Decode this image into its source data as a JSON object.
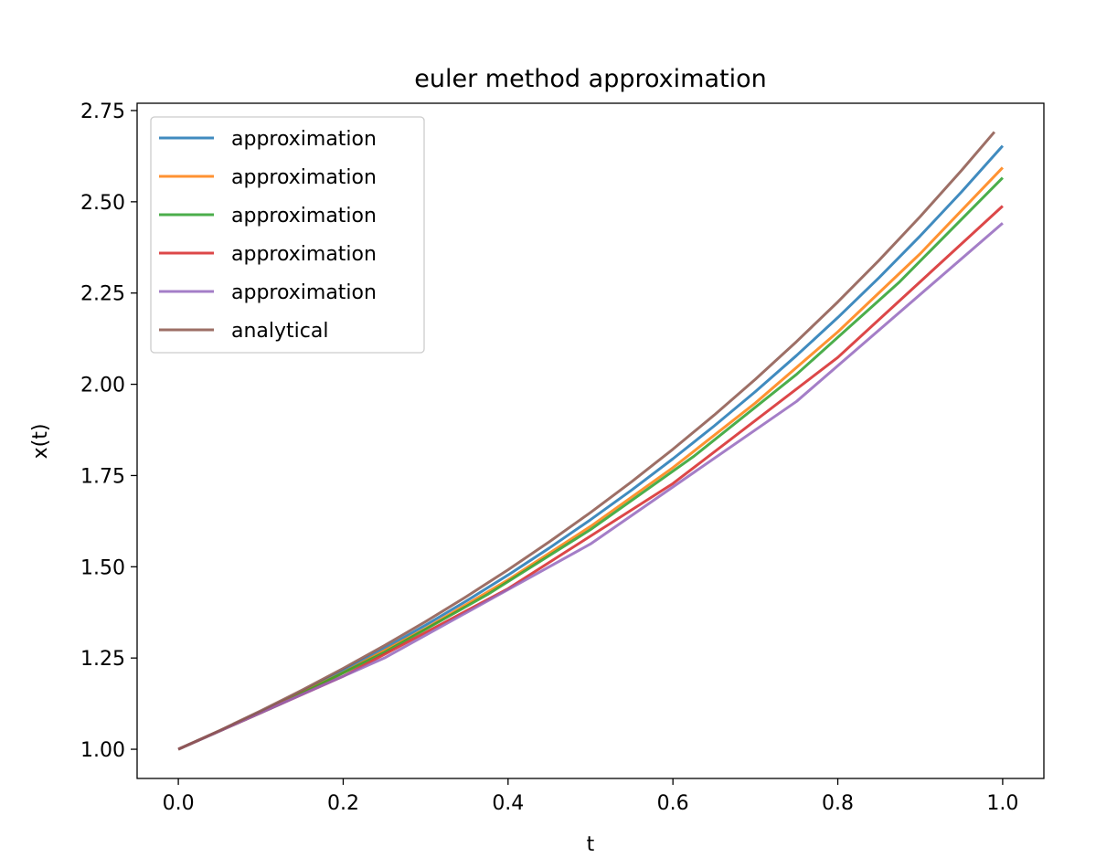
{
  "chart_data": {
    "type": "line",
    "title": "euler method approximation",
    "xlabel": "t",
    "ylabel": "x(t)",
    "xlim": [
      -0.05,
      1.05
    ],
    "ylim": [
      0.92,
      2.77
    ],
    "xticks": [
      0.0,
      0.2,
      0.4,
      0.6,
      0.8,
      1.0
    ],
    "xtick_labels": [
      "0.0",
      "0.2",
      "0.4",
      "0.6",
      "0.8",
      "1.0"
    ],
    "yticks": [
      1.0,
      1.25,
      1.5,
      1.75,
      2.0,
      2.25,
      2.5,
      2.75
    ],
    "ytick_labels": [
      "1.00",
      "1.25",
      "1.50",
      "1.75",
      "2.00",
      "2.25",
      "2.50",
      "2.75"
    ],
    "grid": false,
    "legend_position": "top-left",
    "series": [
      {
        "name": "approximation",
        "color": "#1f77b4",
        "points": [
          [
            0.0,
            1.0
          ],
          [
            0.05,
            1.05
          ],
          [
            0.1,
            1.1025
          ],
          [
            0.15,
            1.157625
          ],
          [
            0.2,
            1.215506
          ],
          [
            0.25,
            1.276282
          ],
          [
            0.3,
            1.340096
          ],
          [
            0.35,
            1.4071
          ],
          [
            0.4,
            1.477455
          ],
          [
            0.45,
            1.551328
          ],
          [
            0.5,
            1.628895
          ],
          [
            0.55,
            1.71034
          ],
          [
            0.6,
            1.795856
          ],
          [
            0.65,
            1.885649
          ],
          [
            0.7,
            1.979932
          ],
          [
            0.75,
            2.078928
          ],
          [
            0.8,
            2.182875
          ],
          [
            0.85,
            2.292018
          ],
          [
            0.9,
            2.406619
          ],
          [
            0.95,
            2.52695
          ],
          [
            1.0,
            2.653298
          ]
        ]
      },
      {
        "name": "approximation",
        "color": "#ff7f0e",
        "points": [
          [
            0.0,
            1.0
          ],
          [
            0.1,
            1.1
          ],
          [
            0.2,
            1.21
          ],
          [
            0.3,
            1.331
          ],
          [
            0.4,
            1.4641
          ],
          [
            0.5,
            1.61051
          ],
          [
            0.6,
            1.771561
          ],
          [
            0.7,
            1.948717
          ],
          [
            0.8,
            2.143589
          ],
          [
            0.9,
            2.357948
          ],
          [
            1.0,
            2.593742
          ]
        ]
      },
      {
        "name": "approximation",
        "color": "#2ca02c",
        "points": [
          [
            0.0,
            1.0
          ],
          [
            0.125,
            1.125
          ],
          [
            0.25,
            1.265625
          ],
          [
            0.375,
            1.423828
          ],
          [
            0.5,
            1.601807
          ],
          [
            0.625,
            1.802032
          ],
          [
            0.75,
            2.027287
          ],
          [
            0.875,
            2.2807
          ],
          [
            1.0,
            2.565789
          ]
        ]
      },
      {
        "name": "approximation",
        "color": "#d62728",
        "points": [
          [
            0.0,
            1.0
          ],
          [
            0.2,
            1.2
          ],
          [
            0.4,
            1.44
          ],
          [
            0.6,
            1.728
          ],
          [
            0.8,
            2.0736
          ],
          [
            1.0,
            2.48832
          ]
        ]
      },
      {
        "name": "approximation",
        "color": "#9467bd",
        "points": [
          [
            0.0,
            1.0
          ],
          [
            0.25,
            1.25
          ],
          [
            0.5,
            1.5625
          ],
          [
            0.75,
            1.953125
          ],
          [
            1.0,
            2.441406
          ]
        ]
      },
      {
        "name": "analytical",
        "color": "#8c564b",
        "points": [
          [
            0.0,
            1.0
          ],
          [
            0.05,
            1.051271
          ],
          [
            0.1,
            1.105171
          ],
          [
            0.15,
            1.161834
          ],
          [
            0.2,
            1.221403
          ],
          [
            0.25,
            1.284025
          ],
          [
            0.3,
            1.349859
          ],
          [
            0.35,
            1.419068
          ],
          [
            0.4,
            1.491825
          ],
          [
            0.45,
            1.568312
          ],
          [
            0.5,
            1.648721
          ],
          [
            0.55,
            1.733253
          ],
          [
            0.6,
            1.822119
          ],
          [
            0.65,
            1.915541
          ],
          [
            0.7,
            2.013753
          ],
          [
            0.75,
            2.117
          ],
          [
            0.8,
            2.225541
          ],
          [
            0.85,
            2.339647
          ],
          [
            0.9,
            2.459603
          ],
          [
            0.95,
            2.58571
          ],
          [
            0.99,
            2.691234
          ]
        ]
      }
    ]
  }
}
